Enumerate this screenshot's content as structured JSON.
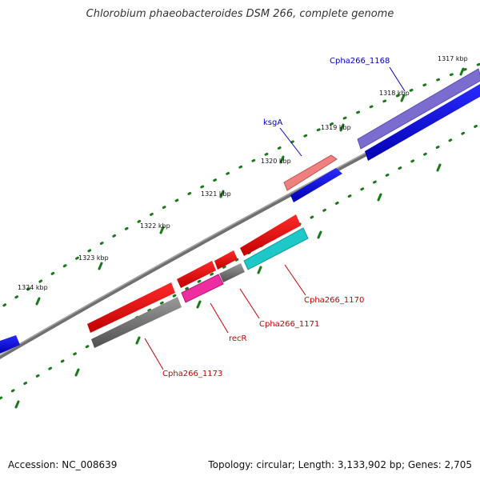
{
  "title": "Chlorobium phaeobacteroides DSM 266, complete genome",
  "footer": {
    "accession": "Accession: NC_008639",
    "summary": "Topology: circular; Length: 3,133,902 bp; Genes: 2,705"
  },
  "ticks": [
    {
      "label": "1317 kbp"
    },
    {
      "label": "1318 kbp"
    },
    {
      "label": "1319 kbp"
    },
    {
      "label": "1320 kbp"
    },
    {
      "label": "1321 kbp"
    },
    {
      "label": "1322 kbp"
    },
    {
      "label": "1323 kbp"
    },
    {
      "label": "1324 kbp"
    }
  ],
  "gene_labels": [
    {
      "name": "Cpha266_1168",
      "strand": "forward"
    },
    {
      "name": "ksgA",
      "strand": "forward"
    },
    {
      "name": "Cpha266_1170",
      "strand": "reverse"
    },
    {
      "name": "Cpha266_1171",
      "strand": "reverse"
    },
    {
      "name": "recR",
      "strand": "reverse"
    },
    {
      "name": "Cpha266_1173",
      "strand": "reverse"
    }
  ],
  "colors": {
    "forward_label": "#0000cc",
    "reverse_label": "#cc0000",
    "cds_blue": "#0000ee",
    "cds_red": "#ee0000",
    "backbone": "#808080",
    "tick": "#1a7a1a"
  }
}
